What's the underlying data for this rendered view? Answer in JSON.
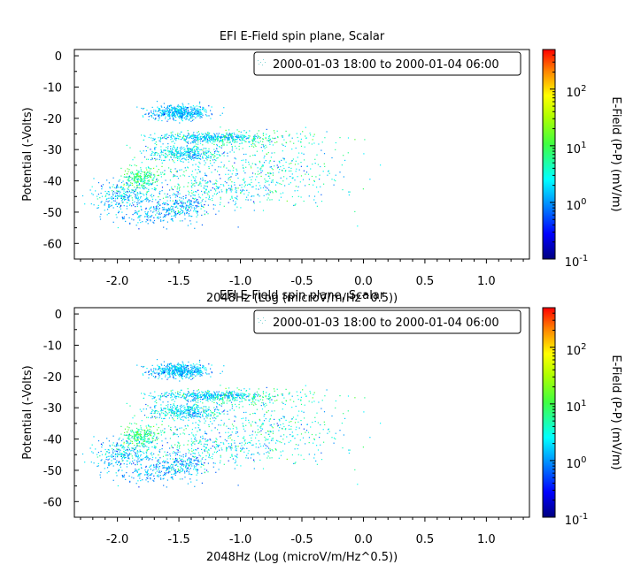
{
  "chart_data": [
    {
      "type": "scatter",
      "title": "EFI  E-Field spin plane, Scalar",
      "xlabel": "2048Hz (Log (microV/m/Hz^0.5))",
      "ylabel": "Potential (-Volts)",
      "xlim": [
        -2.35,
        1.35
      ],
      "ylim": [
        -65,
        2
      ],
      "xticks": [
        "-2.0",
        "-1.5",
        "-1.0",
        "-0.5",
        "0.0",
        "0.5",
        "1.0"
      ],
      "xtick_values": [
        -2.0,
        -1.5,
        -1.0,
        -0.5,
        0.0,
        0.5,
        1.0
      ],
      "yticks": [
        "0",
        "-10",
        "-20",
        "-30",
        "-40",
        "-50",
        "-60"
      ],
      "ytick_values": [
        0,
        -10,
        -20,
        -30,
        -40,
        -50,
        -60
      ],
      "legend": {
        "label": "2000-01-03 18:00 to 2000-01-04 06:00",
        "position": "top-right"
      },
      "colorbar": {
        "label": "E-Field (P-P) (mV/m)",
        "scale": "log",
        "range": [
          0.1,
          500
        ],
        "ticks": [
          {
            "base": "10",
            "exp": "2",
            "value": 100
          },
          {
            "base": "10",
            "exp": "1",
            "value": 10
          },
          {
            "base": "10",
            "exp": "0",
            "value": 1
          },
          {
            "base": "10",
            "exp": "-1",
            "value": 0.1
          }
        ]
      },
      "clusters": [
        {
          "cx": -1.5,
          "cy": -18,
          "sx": 0.12,
          "sy": 1.2,
          "n": 520,
          "lz": 0.15,
          "lzs": 0.22
        },
        {
          "cx": -1.25,
          "cy": -26,
          "sx": 0.22,
          "sy": 0.8,
          "n": 380,
          "lz": 0.25,
          "lzs": 0.25
        },
        {
          "cx": -1.0,
          "cy": -26.5,
          "sx": 0.35,
          "sy": 1.5,
          "n": 220,
          "lz": 0.65,
          "lzs": 0.3
        },
        {
          "cx": -1.45,
          "cy": -31,
          "sx": 0.16,
          "sy": 1.2,
          "n": 380,
          "lz": 0.3,
          "lzs": 0.3
        },
        {
          "cx": -1.8,
          "cy": -39,
          "sx": 0.08,
          "sy": 2.0,
          "n": 240,
          "lz": 0.8,
          "lzs": 0.25
        },
        {
          "cx": -1.95,
          "cy": -45,
          "sx": 0.12,
          "sy": 2.5,
          "n": 280,
          "lz": 0.2,
          "lzs": 0.3
        },
        {
          "cx": -1.5,
          "cy": -48,
          "sx": 0.12,
          "sy": 2.0,
          "n": 220,
          "lz": 0.15,
          "lzs": 0.3
        },
        {
          "cx": -1.3,
          "cy": -42,
          "sx": 0.3,
          "sy": 3.5,
          "n": 320,
          "lz": 0.35,
          "lzs": 0.35
        },
        {
          "cx": -0.9,
          "cy": -37,
          "sx": 0.35,
          "sy": 4.0,
          "n": 260,
          "lz": 0.45,
          "lzs": 0.35
        },
        {
          "cx": -1.7,
          "cy": -51,
          "sx": 0.15,
          "sy": 1.5,
          "n": 140,
          "lz": 0.1,
          "lzs": 0.25
        },
        {
          "cx": -0.55,
          "cy": -38,
          "sx": 0.25,
          "sy": 6.0,
          "n": 90,
          "lz": 0.4,
          "lzs": 0.35
        }
      ]
    },
    {
      "type": "scatter",
      "title": "EFI  E-Field spin plane, Scalar",
      "xlabel": "2048Hz (Log (microV/m/Hz^0.5))",
      "ylabel": "Potential (-Volts)",
      "xlim": [
        -2.35,
        1.35
      ],
      "ylim": [
        -65,
        2
      ],
      "xticks": [
        "-2.0",
        "-1.5",
        "-1.0",
        "-0.5",
        "0.0",
        "0.5",
        "1.0"
      ],
      "xtick_values": [
        -2.0,
        -1.5,
        -1.0,
        -0.5,
        0.0,
        0.5,
        1.0
      ],
      "yticks": [
        "0",
        "-10",
        "-20",
        "-30",
        "-40",
        "-50",
        "-60"
      ],
      "ytick_values": [
        0,
        -10,
        -20,
        -30,
        -40,
        -50,
        -60
      ],
      "legend": {
        "label": "2000-01-03 18:00 to 2000-01-04 06:00",
        "position": "top-right"
      },
      "colorbar": {
        "label": "E-Field (P-P) (mV/m)",
        "scale": "log",
        "range": [
          0.1,
          500
        ],
        "ticks": [
          {
            "base": "10",
            "exp": "2",
            "value": 100
          },
          {
            "base": "10",
            "exp": "1",
            "value": 10
          },
          {
            "base": "10",
            "exp": "0",
            "value": 1
          },
          {
            "base": "10",
            "exp": "-1",
            "value": 0.1
          }
        ]
      },
      "clusters": [
        {
          "cx": -1.5,
          "cy": -18,
          "sx": 0.12,
          "sy": 1.2,
          "n": 520,
          "lz": 0.15,
          "lzs": 0.22
        },
        {
          "cx": -1.25,
          "cy": -26,
          "sx": 0.22,
          "sy": 0.8,
          "n": 380,
          "lz": 0.25,
          "lzs": 0.25
        },
        {
          "cx": -1.0,
          "cy": -26.5,
          "sx": 0.35,
          "sy": 1.5,
          "n": 220,
          "lz": 0.65,
          "lzs": 0.3
        },
        {
          "cx": -1.45,
          "cy": -31,
          "sx": 0.16,
          "sy": 1.2,
          "n": 380,
          "lz": 0.3,
          "lzs": 0.3
        },
        {
          "cx": -1.8,
          "cy": -39,
          "sx": 0.08,
          "sy": 2.0,
          "n": 240,
          "lz": 0.8,
          "lzs": 0.25
        },
        {
          "cx": -1.95,
          "cy": -45,
          "sx": 0.12,
          "sy": 2.5,
          "n": 280,
          "lz": 0.2,
          "lzs": 0.3
        },
        {
          "cx": -1.5,
          "cy": -48,
          "sx": 0.12,
          "sy": 2.0,
          "n": 220,
          "lz": 0.15,
          "lzs": 0.3
        },
        {
          "cx": -1.3,
          "cy": -42,
          "sx": 0.3,
          "sy": 3.5,
          "n": 320,
          "lz": 0.35,
          "lzs": 0.35
        },
        {
          "cx": -0.9,
          "cy": -37,
          "sx": 0.35,
          "sy": 4.0,
          "n": 260,
          "lz": 0.45,
          "lzs": 0.35
        },
        {
          "cx": -1.7,
          "cy": -51,
          "sx": 0.15,
          "sy": 1.5,
          "n": 140,
          "lz": 0.1,
          "lzs": 0.25
        },
        {
          "cx": -0.55,
          "cy": -38,
          "sx": 0.25,
          "sy": 6.0,
          "n": 90,
          "lz": 0.4,
          "lzs": 0.35
        }
      ]
    }
  ]
}
